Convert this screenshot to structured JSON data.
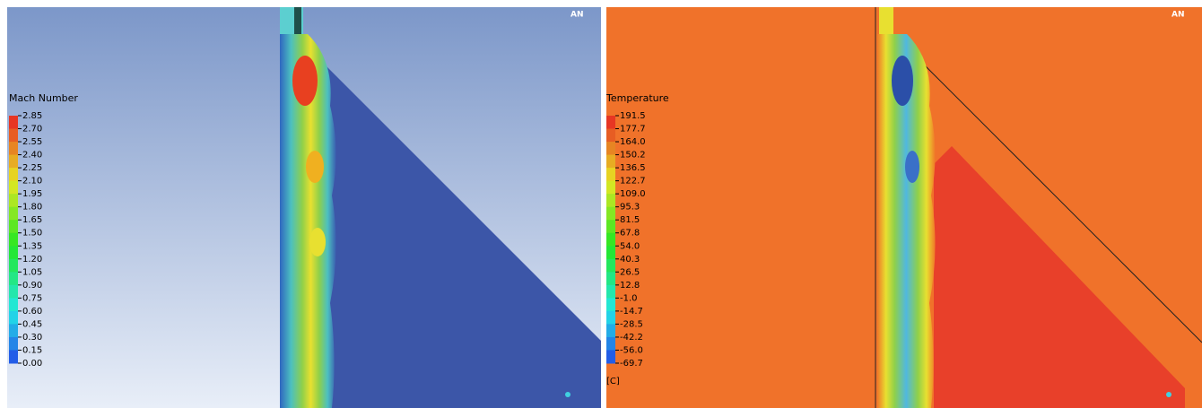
{
  "panels": [
    {
      "legend_title": "Mach  Number",
      "unit": null,
      "logo": "AN",
      "legend_labels": [
        "2.85",
        "2.70",
        "2.55",
        "2.40",
        "2.25",
        "2.10",
        "1.95",
        "1.80",
        "1.65",
        "1.50",
        "1.35",
        "1.20",
        "1.05",
        "0.90",
        "0.75",
        "0.60",
        "0.45",
        "0.30",
        "0.15",
        "0.00"
      ]
    },
    {
      "legend_title": "Temperature",
      "unit": "[C]",
      "logo": "AN",
      "legend_labels": [
        "191.5",
        "177.7",
        "164.0",
        "150.2",
        "136.5",
        "122.7",
        "109.0",
        "95.3",
        "81.5",
        "67.8",
        "54.0",
        "40.3",
        "26.5",
        "12.8",
        "-1.0",
        "-14.7",
        "-28.5",
        "-42.2",
        "-56.0",
        "-69.7"
      ]
    }
  ]
}
